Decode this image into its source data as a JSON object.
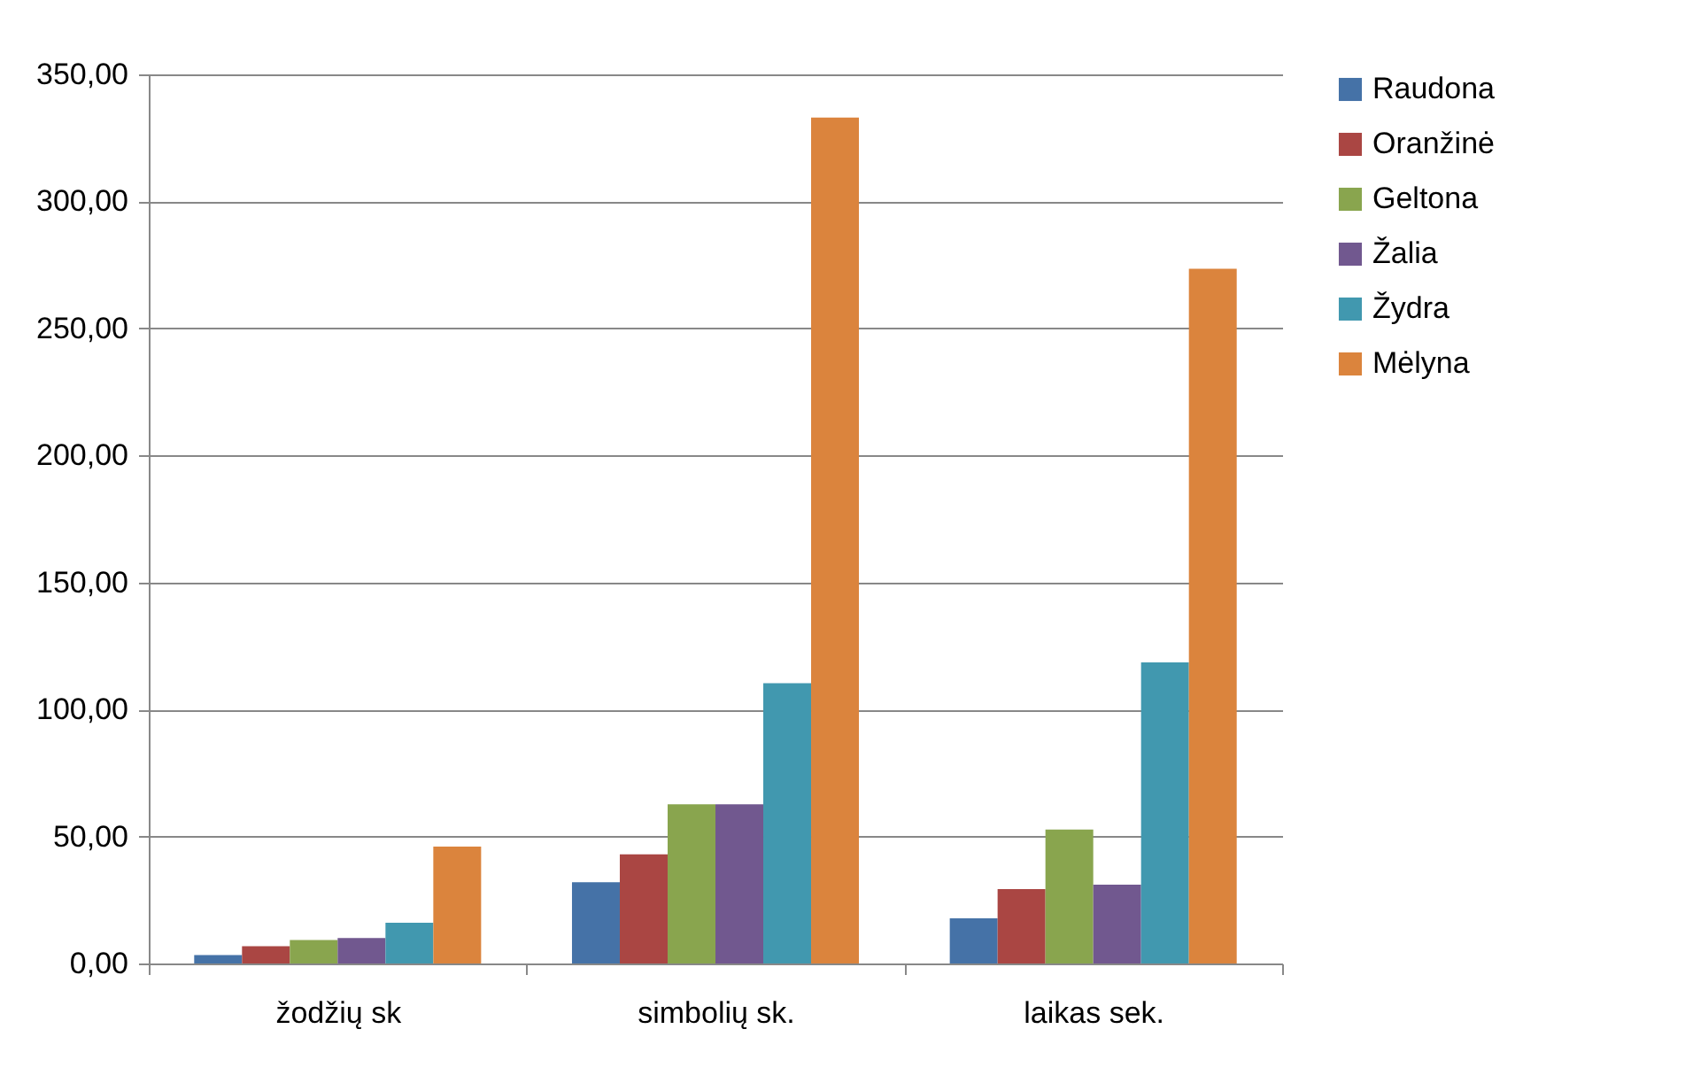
{
  "chart_data": {
    "type": "bar",
    "categories": [
      "žodžių sk",
      "simbolių sk.",
      "laikas sek."
    ],
    "series": [
      {
        "name": "Raudona",
        "color": "#4572a7",
        "values": [
          3.3,
          32,
          17.8
        ]
      },
      {
        "name": "Oranžinė",
        "color": "#aa4643",
        "values": [
          6.8,
          43,
          29.3
        ]
      },
      {
        "name": "Geltona",
        "color": "#89a54e",
        "values": [
          9.2,
          62.7,
          52.7
        ]
      },
      {
        "name": "Žalia",
        "color": "#71588f",
        "values": [
          10,
          62.7,
          31
        ]
      },
      {
        "name": "Žydra",
        "color": "#4198af",
        "values": [
          16,
          110.3,
          118.5
        ]
      },
      {
        "name": "Mėlyna",
        "color": "#db843d",
        "values": [
          46,
          333,
          273.5
        ]
      }
    ],
    "ylim": [
      0,
      350
    ],
    "yticks": [
      {
        "value": 0,
        "label": "0,00"
      },
      {
        "value": 50,
        "label": "50,00"
      },
      {
        "value": 100,
        "label": "100,00"
      },
      {
        "value": 150,
        "label": "150,00"
      },
      {
        "value": 200,
        "label": "200,00"
      },
      {
        "value": 250,
        "label": "250,00"
      },
      {
        "value": 300,
        "label": "300,00"
      },
      {
        "value": 350,
        "label": "350,00"
      }
    ],
    "grid": "y",
    "legend": "right"
  }
}
